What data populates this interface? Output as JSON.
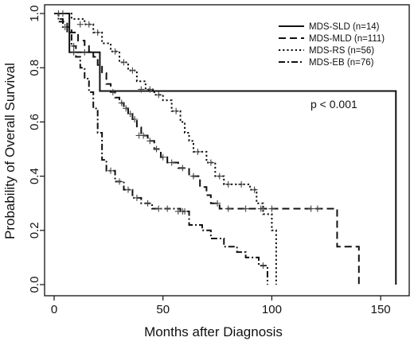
{
  "chart_data": {
    "type": "line",
    "subtype": "kaplan-meier step curves with censor marks",
    "title": "",
    "xlabel": "Months after Diagnosis",
    "ylabel": "Probability of Overall Survival",
    "xlim": [
      0,
      165
    ],
    "ylim": [
      0,
      1.0
    ],
    "xticks": [
      0,
      50,
      100,
      150
    ],
    "yticks": [
      0.0,
      0.2,
      0.4,
      0.6,
      0.8,
      1.0
    ],
    "xtick_labels": [
      "0",
      "50",
      "100",
      "150"
    ],
    "ytick_labels": [
      "0.0",
      "0.2",
      "0.4",
      "0.6",
      "0.8",
      "1.0"
    ],
    "grid": false,
    "legend_position": "top-right",
    "annotation": "p < 0.001",
    "series": [
      {
        "name": "MDS-SLD (n=14)",
        "dash": "solid",
        "steps": [
          [
            0,
            1.0
          ],
          [
            7,
            0.857
          ],
          [
            21,
            0.714
          ],
          [
            157,
            0.714
          ],
          [
            157,
            0.0
          ]
        ],
        "censored": [
          [
            2,
            1.0
          ],
          [
            4,
            1.0
          ],
          [
            9,
            0.857
          ],
          [
            14,
            0.857
          ]
        ]
      },
      {
        "name": "MDS-MLD (n=111)",
        "dash": "dashed",
        "steps": [
          [
            0,
            1.0
          ],
          [
            2,
            0.98
          ],
          [
            4,
            0.97
          ],
          [
            6,
            0.95
          ],
          [
            8,
            0.93
          ],
          [
            11,
            0.9
          ],
          [
            14,
            0.88
          ],
          [
            16,
            0.86
          ],
          [
            18,
            0.84
          ],
          [
            20,
            0.81
          ],
          [
            22,
            0.78
          ],
          [
            24,
            0.74
          ],
          [
            26,
            0.71
          ],
          [
            28,
            0.69
          ],
          [
            30,
            0.67
          ],
          [
            32,
            0.65
          ],
          [
            34,
            0.63
          ],
          [
            36,
            0.61
          ],
          [
            38,
            0.58
          ],
          [
            40,
            0.55
          ],
          [
            43,
            0.53
          ],
          [
            46,
            0.5
          ],
          [
            49,
            0.47
          ],
          [
            52,
            0.45
          ],
          [
            57,
            0.43
          ],
          [
            62,
            0.4
          ],
          [
            67,
            0.36
          ],
          [
            70,
            0.33
          ],
          [
            72,
            0.3
          ],
          [
            76,
            0.28
          ],
          [
            130,
            0.28
          ],
          [
            130,
            0.14
          ],
          [
            140,
            0.14
          ],
          [
            140,
            0.0
          ]
        ],
        "censored": [
          [
            27,
            0.71
          ],
          [
            31,
            0.67
          ],
          [
            33,
            0.65
          ],
          [
            35,
            0.63
          ],
          [
            37,
            0.61
          ],
          [
            39,
            0.55
          ],
          [
            41,
            0.55
          ],
          [
            44,
            0.53
          ],
          [
            47,
            0.5
          ],
          [
            50,
            0.47
          ],
          [
            54,
            0.45
          ],
          [
            59,
            0.43
          ],
          [
            64,
            0.4
          ],
          [
            75,
            0.3
          ],
          [
            80,
            0.28
          ],
          [
            88,
            0.28
          ],
          [
            95,
            0.28
          ],
          [
            100,
            0.28
          ],
          [
            118,
            0.28
          ],
          [
            121,
            0.28
          ]
        ]
      },
      {
        "name": "MDS-RS (n=56)",
        "dash": "dotted",
        "steps": [
          [
            0,
            1.0
          ],
          [
            8,
            0.98
          ],
          [
            14,
            0.96
          ],
          [
            18,
            0.93
          ],
          [
            22,
            0.89
          ],
          [
            26,
            0.86
          ],
          [
            30,
            0.82
          ],
          [
            34,
            0.79
          ],
          [
            38,
            0.75
          ],
          [
            42,
            0.72
          ],
          [
            46,
            0.7
          ],
          [
            50,
            0.68
          ],
          [
            54,
            0.64
          ],
          [
            58,
            0.6
          ],
          [
            60,
            0.56
          ],
          [
            62,
            0.53
          ],
          [
            64,
            0.49
          ],
          [
            70,
            0.45
          ],
          [
            74,
            0.4
          ],
          [
            78,
            0.37
          ],
          [
            90,
            0.35
          ],
          [
            93,
            0.3
          ],
          [
            96,
            0.26
          ],
          [
            100,
            0.2
          ],
          [
            102,
            0.2
          ],
          [
            102,
            0.0
          ]
        ],
        "censored": [
          [
            12,
            0.96
          ],
          [
            16,
            0.96
          ],
          [
            20,
            0.93
          ],
          [
            28,
            0.86
          ],
          [
            32,
            0.82
          ],
          [
            36,
            0.79
          ],
          [
            40,
            0.72
          ],
          [
            44,
            0.72
          ],
          [
            48,
            0.7
          ],
          [
            56,
            0.64
          ],
          [
            66,
            0.49
          ],
          [
            72,
            0.45
          ],
          [
            76,
            0.4
          ],
          [
            80,
            0.37
          ],
          [
            86,
            0.37
          ],
          [
            92,
            0.35
          ]
        ]
      },
      {
        "name": "MDS-EB (n=76)",
        "dash": "dash-dot",
        "steps": [
          [
            0,
            1.0
          ],
          [
            2,
            0.97
          ],
          [
            4,
            0.95
          ],
          [
            6,
            0.93
          ],
          [
            8,
            0.88
          ],
          [
            10,
            0.84
          ],
          [
            12,
            0.8
          ],
          [
            14,
            0.76
          ],
          [
            16,
            0.71
          ],
          [
            18,
            0.65
          ],
          [
            20,
            0.56
          ],
          [
            22,
            0.46
          ],
          [
            24,
            0.42
          ],
          [
            28,
            0.38
          ],
          [
            32,
            0.35
          ],
          [
            36,
            0.32
          ],
          [
            40,
            0.3
          ],
          [
            45,
            0.28
          ],
          [
            55,
            0.28
          ],
          [
            58,
            0.27
          ],
          [
            62,
            0.22
          ],
          [
            68,
            0.2
          ],
          [
            72,
            0.17
          ],
          [
            78,
            0.14
          ],
          [
            84,
            0.12
          ],
          [
            88,
            0.1
          ],
          [
            94,
            0.07
          ],
          [
            98,
            0.07
          ],
          [
            98,
            0.0
          ]
        ],
        "censored": [
          [
            5,
            0.95
          ],
          [
            9,
            0.88
          ],
          [
            26,
            0.42
          ],
          [
            30,
            0.38
          ],
          [
            34,
            0.35
          ],
          [
            38,
            0.32
          ],
          [
            43,
            0.3
          ],
          [
            48,
            0.28
          ],
          [
            52,
            0.28
          ],
          [
            57,
            0.27
          ],
          [
            59,
            0.27
          ],
          [
            60,
            0.27
          ],
          [
            96,
            0.07
          ]
        ]
      }
    ]
  }
}
